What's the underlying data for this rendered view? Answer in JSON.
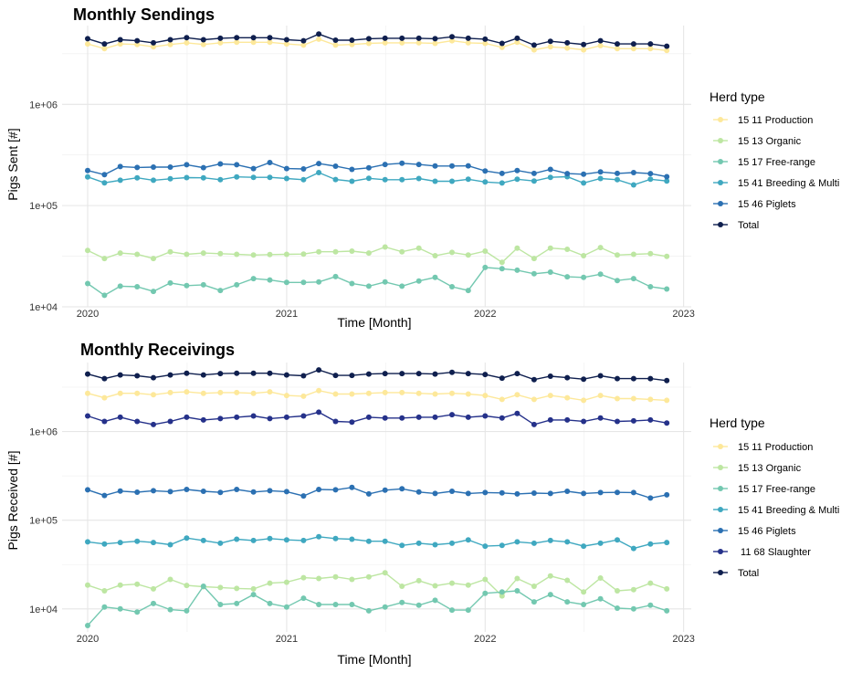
{
  "chart_data": [
    {
      "type": "line",
      "title": "Monthly Sendings",
      "xlabel": "Time [Month]",
      "ylabel": "Pigs Sent [#]",
      "y_scale": "log",
      "ylim": [
        10000,
        6000000
      ],
      "xlim": [
        "2019-11-15",
        "2023-01-15"
      ],
      "x_ticks": [
        "2020",
        "2021",
        "2022",
        "2023"
      ],
      "y_ticks": [
        "1e+04",
        "1e+05",
        "1e+06"
      ],
      "y_tick_values": [
        10000,
        100000,
        1000000
      ],
      "grid": true,
      "legend_title": "Herd type",
      "legend_position": "right",
      "x": [
        "2020-01",
        "2020-02",
        "2020-03",
        "2020-04",
        "2020-05",
        "2020-06",
        "2020-07",
        "2020-08",
        "2020-09",
        "2020-10",
        "2020-11",
        "2020-12",
        "2021-01",
        "2021-02",
        "2021-03",
        "2021-04",
        "2021-05",
        "2021-06",
        "2021-07",
        "2021-08",
        "2021-09",
        "2021-10",
        "2021-11",
        "2021-12",
        "2022-01",
        "2022-02",
        "2022-03",
        "2022-04",
        "2022-05",
        "2022-06",
        "2022-07",
        "2022-08",
        "2022-09",
        "2022-10",
        "2022-11",
        "2022-12"
      ],
      "series": [
        {
          "name": "15 11 Production",
          "color": "#fde89a",
          "values": [
            3950000,
            3550000,
            3950000,
            3900000,
            3700000,
            3900000,
            4050000,
            3900000,
            4050000,
            4100000,
            4100000,
            4100000,
            3950000,
            3850000,
            4400000,
            3850000,
            3900000,
            4000000,
            4050000,
            4050000,
            4050000,
            4000000,
            4250000,
            4050000,
            4000000,
            3650000,
            4100000,
            3450000,
            3700000,
            3600000,
            3450000,
            3800000,
            3550000,
            3550000,
            3550000,
            3400000
          ]
        },
        {
          "name": "15 13 Organic",
          "color": "#bde6a2",
          "values": [
            36000,
            30000,
            34000,
            33000,
            30000,
            35000,
            33000,
            34000,
            33500,
            33000,
            32500,
            32800,
            33000,
            33200,
            35000,
            35000,
            35500,
            34000,
            39000,
            35000,
            38000,
            32000,
            34500,
            32500,
            35500,
            27500,
            38000,
            30000,
            38000,
            37000,
            32000,
            38500,
            32500,
            33000,
            33500,
            31500
          ]
        },
        {
          "name": "15 17 Free-range",
          "color": "#73c8b0",
          "values": [
            17000,
            13000,
            16000,
            15800,
            14200,
            17200,
            16200,
            16500,
            14500,
            16500,
            19000,
            18400,
            17400,
            17400,
            17600,
            19900,
            17000,
            16000,
            17600,
            16000,
            18000,
            19500,
            15800,
            14500,
            24500,
            23800,
            23000,
            21200,
            22000,
            19800,
            19500,
            21000,
            18200,
            19000,
            15800,
            15000
          ]
        },
        {
          "name": "15 41 Breeding & Multi",
          "color": "#3fa8c0",
          "values": [
            192000,
            168000,
            178000,
            188000,
            178000,
            184000,
            189000,
            188000,
            180000,
            192000,
            190000,
            190000,
            185000,
            180000,
            212000,
            181000,
            174000,
            186000,
            180000,
            180000,
            185000,
            174000,
            174000,
            182000,
            171000,
            167000,
            182000,
            175000,
            190000,
            193000,
            167000,
            185000,
            180000,
            160000,
            182000,
            175000
          ]
        },
        {
          "name": "15 46 Piglets",
          "color": "#2b70b2",
          "values": [
            222000,
            202000,
            243000,
            238000,
            240000,
            240000,
            253000,
            237000,
            258000,
            253000,
            232000,
            266000,
            232000,
            230000,
            260000,
            245000,
            228000,
            236000,
            255000,
            262000,
            255000,
            246000,
            246000,
            247000,
            220000,
            208000,
            222000,
            208000,
            228000,
            207000,
            204000,
            215000,
            208000,
            212000,
            207000,
            193000
          ]
        },
        {
          "name": "Total",
          "color": "#0f1f4e",
          "values": [
            4450000,
            3950000,
            4350000,
            4250000,
            4050000,
            4350000,
            4550000,
            4350000,
            4500000,
            4550000,
            4550000,
            4550000,
            4350000,
            4250000,
            4950000,
            4300000,
            4300000,
            4450000,
            4500000,
            4500000,
            4500000,
            4450000,
            4650000,
            4500000,
            4400000,
            4000000,
            4500000,
            3850000,
            4200000,
            4050000,
            3900000,
            4250000,
            3950000,
            3950000,
            3950000,
            3750000
          ]
        }
      ]
    },
    {
      "type": "line",
      "title": "Monthly Receivings",
      "xlabel": "Time [Month]",
      "ylabel": "Pigs Received [#]",
      "y_scale": "log",
      "ylim": [
        5500,
        6000000
      ],
      "xlim": [
        "2019-11-15",
        "2023-01-15"
      ],
      "x_ticks": [
        "2020",
        "2021",
        "2022",
        "2023"
      ],
      "y_ticks": [
        "1e+04",
        "1e+05",
        "1e+06"
      ],
      "y_tick_values": [
        10000,
        100000,
        1000000
      ],
      "grid": true,
      "legend_title": "Herd type",
      "legend_position": "right",
      "x": [
        "2020-01",
        "2020-02",
        "2020-03",
        "2020-04",
        "2020-05",
        "2020-06",
        "2020-07",
        "2020-08",
        "2020-09",
        "2020-10",
        "2020-11",
        "2020-12",
        "2021-01",
        "2021-02",
        "2021-03",
        "2021-04",
        "2021-05",
        "2021-06",
        "2021-07",
        "2021-08",
        "2021-09",
        "2021-10",
        "2021-11",
        "2021-12",
        "2022-01",
        "2022-02",
        "2022-03",
        "2022-04",
        "2022-05",
        "2022-06",
        "2022-07",
        "2022-08",
        "2022-09",
        "2022-10",
        "2022-11",
        "2022-12"
      ],
      "series": [
        {
          "name": "15 11 Production",
          "color": "#fde89a",
          "values": [
            2700000,
            2400000,
            2700000,
            2700000,
            2600000,
            2750000,
            2800000,
            2700000,
            2750000,
            2750000,
            2700000,
            2800000,
            2550000,
            2500000,
            2900000,
            2650000,
            2650000,
            2700000,
            2750000,
            2750000,
            2700000,
            2650000,
            2700000,
            2650000,
            2550000,
            2300000,
            2600000,
            2300000,
            2550000,
            2400000,
            2250000,
            2550000,
            2350000,
            2350000,
            2300000,
            2250000
          ]
        },
        {
          "name": "15 13 Organic",
          "color": "#bde6a2",
          "values": [
            18500,
            16000,
            18500,
            19000,
            16800,
            21500,
            18400,
            17800,
            17400,
            17000,
            16800,
            19500,
            20000,
            22500,
            22000,
            23000,
            21500,
            23000,
            25500,
            18000,
            20800,
            18200,
            19500,
            18500,
            21500,
            14000,
            22000,
            18000,
            23500,
            21000,
            15500,
            22300,
            16000,
            16500,
            19500,
            16800
          ]
        },
        {
          "name": "15 17 Free-range",
          "color": "#73c8b0",
          "values": [
            6500,
            10500,
            10000,
            9200,
            11500,
            9800,
            9500,
            18000,
            11200,
            11500,
            14500,
            11500,
            10500,
            13200,
            11200,
            11200,
            11200,
            9500,
            10500,
            11800,
            11000,
            12500,
            9700,
            9700,
            15000,
            15500,
            16000,
            12000,
            14500,
            12000,
            11200,
            13000,
            10200,
            10000,
            11000,
            9500
          ]
        },
        {
          "name": "15 41 Breeding & Multi",
          "color": "#3fa8c0",
          "values": [
            57000,
            54000,
            56000,
            58000,
            56000,
            53000,
            63000,
            59000,
            55000,
            61000,
            59000,
            62000,
            60000,
            59000,
            65000,
            62000,
            61000,
            58000,
            58000,
            52000,
            55000,
            53000,
            55000,
            60000,
            51000,
            52000,
            57000,
            55000,
            59000,
            57000,
            51000,
            55000,
            60000,
            48000,
            54000,
            56000
          ]
        },
        {
          "name": "15 46 Piglets",
          "color": "#2b70b2",
          "values": [
            220000,
            190000,
            213000,
            207000,
            215000,
            210000,
            222000,
            212000,
            206000,
            222000,
            208000,
            215000,
            210000,
            188000,
            222000,
            220000,
            234000,
            198000,
            218000,
            226000,
            208000,
            200000,
            212000,
            200000,
            205000,
            203000,
            198000,
            202000,
            200000,
            212000,
            200000,
            205000,
            206000,
            205000,
            178000,
            193000
          ]
        },
        {
          "name": " 11 68 Slaughter",
          "color": "#25318a",
          "values": [
            1500000,
            1300000,
            1450000,
            1300000,
            1200000,
            1300000,
            1450000,
            1350000,
            1400000,
            1450000,
            1500000,
            1400000,
            1450000,
            1500000,
            1650000,
            1300000,
            1280000,
            1450000,
            1420000,
            1420000,
            1450000,
            1450000,
            1550000,
            1450000,
            1500000,
            1420000,
            1600000,
            1200000,
            1350000,
            1350000,
            1300000,
            1420000,
            1300000,
            1320000,
            1350000,
            1250000
          ]
        },
        {
          "name": "Total",
          "color": "#0f1f4e",
          "values": [
            4450000,
            3950000,
            4350000,
            4250000,
            4050000,
            4350000,
            4550000,
            4350000,
            4500000,
            4550000,
            4550000,
            4550000,
            4350000,
            4250000,
            4950000,
            4300000,
            4300000,
            4450000,
            4500000,
            4500000,
            4500000,
            4450000,
            4650000,
            4500000,
            4400000,
            4000000,
            4500000,
            3850000,
            4200000,
            4050000,
            3900000,
            4250000,
            3950000,
            3950000,
            3950000,
            3750000
          ]
        }
      ]
    }
  ]
}
